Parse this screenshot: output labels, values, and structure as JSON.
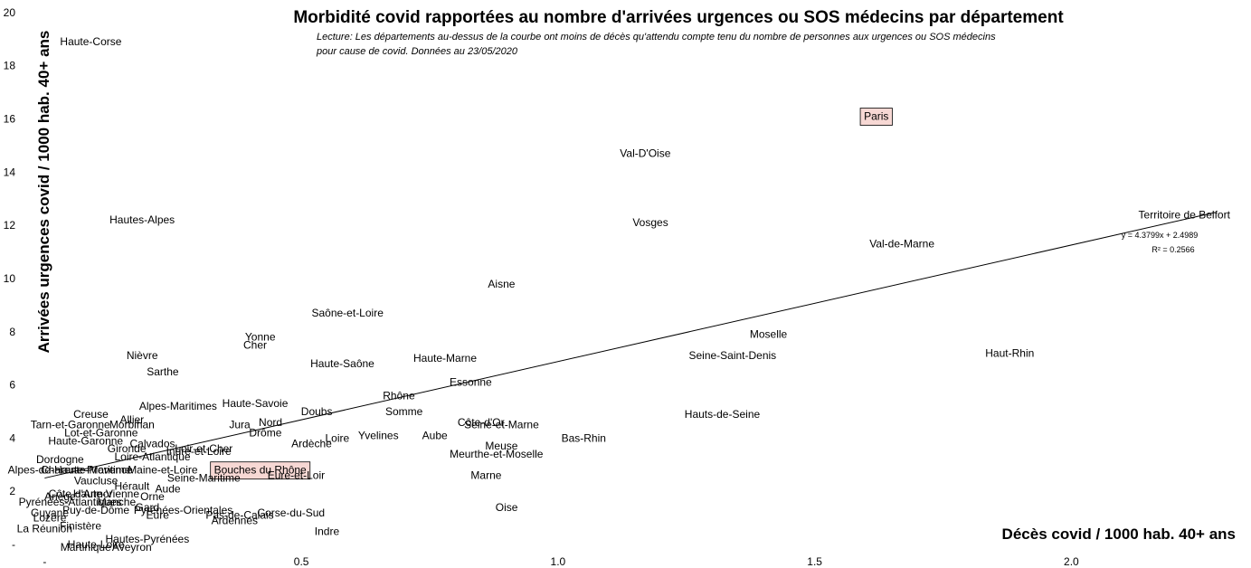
{
  "chart_data": {
    "type": "scatter",
    "title": "Morbidité covid rapportées au nombre d'arrivées urgences ou SOS médecins par département",
    "subtitle_lines": [
      "Lecture: Les départements au-dessus de la courbe ont moins de décès qu'attendu compte tenu du nombre de personnes  aux urgences ou SOS médecins",
      "pour cause de covid. Données au 23/05/2020"
    ],
    "xlabel": "Décès covid / 1000 hab. 40+ ans",
    "ylabel": "Arrivées urgences covid / 1000 hab.  40+ ans",
    "xlim": [
      -0.02,
      2.32
    ],
    "ylim": [
      -0.1,
      20.3
    ],
    "x_ticks": [
      {
        "v": 0,
        "label": "-"
      },
      {
        "v": 0.5,
        "label": "0.5"
      },
      {
        "v": 1.0,
        "label": "1.0"
      },
      {
        "v": 1.5,
        "label": "1.5"
      },
      {
        "v": 2.0,
        "label": "2.0"
      }
    ],
    "y_ticks": [
      {
        "v": 0,
        "label": "-"
      },
      {
        "v": 2,
        "label": "2"
      },
      {
        "v": 4,
        "label": "4"
      },
      {
        "v": 6,
        "label": "6"
      },
      {
        "v": 8,
        "label": "8"
      },
      {
        "v": 10,
        "label": "10"
      },
      {
        "v": 12,
        "label": "12"
      },
      {
        "v": 14,
        "label": "14"
      },
      {
        "v": 16,
        "label": "16"
      },
      {
        "v": 18,
        "label": "18"
      },
      {
        "v": 20,
        "label": "20"
      }
    ],
    "trendline": {
      "slope": 4.3799,
      "intercept": 2.4989,
      "x_range": [
        0.0,
        2.28
      ],
      "equation_label": "y = 4.3799x + 2.4989",
      "r2_label": "R² = 0.2566"
    },
    "points": [
      {
        "name": "Haute-Corse",
        "x": 0.09,
        "y": 18.9
      },
      {
        "name": "Paris",
        "x": 1.62,
        "y": 16.1,
        "highlight": true
      },
      {
        "name": "Val-D'Oise",
        "x": 1.17,
        "y": 14.7
      },
      {
        "name": "Territoire de Belfort",
        "x": 2.22,
        "y": 12.4
      },
      {
        "name": "Hautes-Alpes",
        "x": 0.19,
        "y": 12.2
      },
      {
        "name": "Vosges",
        "x": 1.18,
        "y": 12.1
      },
      {
        "name": "Val-de-Marne",
        "x": 1.67,
        "y": 11.3
      },
      {
        "name": "Aisne",
        "x": 0.89,
        "y": 9.8
      },
      {
        "name": "Saône-et-Loire",
        "x": 0.59,
        "y": 8.7
      },
      {
        "name": "Moselle",
        "x": 1.41,
        "y": 7.9
      },
      {
        "name": "Yonne",
        "x": 0.42,
        "y": 7.8
      },
      {
        "name": "Cher",
        "x": 0.41,
        "y": 7.5
      },
      {
        "name": "Haut-Rhin",
        "x": 1.88,
        "y": 7.2
      },
      {
        "name": "Nièvre",
        "x": 0.19,
        "y": 7.1
      },
      {
        "name": "Seine-Saint-Denis",
        "x": 1.34,
        "y": 7.1
      },
      {
        "name": "Haute-Marne",
        "x": 0.78,
        "y": 7.0
      },
      {
        "name": "Haute-Saône",
        "x": 0.58,
        "y": 6.8
      },
      {
        "name": "Sarthe",
        "x": 0.23,
        "y": 6.5
      },
      {
        "name": "Essonne",
        "x": 0.83,
        "y": 6.1
      },
      {
        "name": "Rhône",
        "x": 0.69,
        "y": 5.6
      },
      {
        "name": "Haute-Savoie",
        "x": 0.41,
        "y": 5.3
      },
      {
        "name": "Alpes-Maritimes",
        "x": 0.26,
        "y": 5.2
      },
      {
        "name": "Doubs",
        "x": 0.53,
        "y": 5.0
      },
      {
        "name": "Somme",
        "x": 0.7,
        "y": 5.0
      },
      {
        "name": "Hauts-de-Seine",
        "x": 1.32,
        "y": 4.9
      },
      {
        "name": "Creuse",
        "x": 0.09,
        "y": 4.9
      },
      {
        "name": "Allier",
        "x": 0.17,
        "y": 4.7
      },
      {
        "name": "Côte-d'Or",
        "x": 0.85,
        "y": 4.6
      },
      {
        "name": "Nord",
        "x": 0.44,
        "y": 4.6
      },
      {
        "name": "Jura",
        "x": 0.38,
        "y": 4.5
      },
      {
        "name": "Tarn-et-Garonne",
        "x": 0.05,
        "y": 4.5
      },
      {
        "name": "Morbihan",
        "x": 0.17,
        "y": 4.5
      },
      {
        "name": "Seine-et-Marne",
        "x": 0.89,
        "y": 4.5
      },
      {
        "name": "Drôme",
        "x": 0.43,
        "y": 4.2
      },
      {
        "name": "Lot-et-Garonne",
        "x": 0.11,
        "y": 4.2
      },
      {
        "name": "Yvelines",
        "x": 0.65,
        "y": 4.1
      },
      {
        "name": "Aube",
        "x": 0.76,
        "y": 4.1
      },
      {
        "name": "Loire",
        "x": 0.57,
        "y": 4.0
      },
      {
        "name": "Bas-Rhin",
        "x": 1.05,
        "y": 4.0
      },
      {
        "name": "Haute-Garonne",
        "x": 0.08,
        "y": 3.9
      },
      {
        "name": "Ardèche",
        "x": 0.52,
        "y": 3.8
      },
      {
        "name": "Calvados",
        "x": 0.21,
        "y": 3.8
      },
      {
        "name": "Meuse",
        "x": 0.89,
        "y": 3.7
      },
      {
        "name": "Loir-et-Cher",
        "x": 0.31,
        "y": 3.6
      },
      {
        "name": "Gironde",
        "x": 0.16,
        "y": 3.6
      },
      {
        "name": "Indre-et-Loire",
        "x": 0.3,
        "y": 3.5
      },
      {
        "name": "Meurthe-et-Moselle",
        "x": 0.88,
        "y": 3.4
      },
      {
        "name": "Loire-Atlantique",
        "x": 0.21,
        "y": 3.3
      },
      {
        "name": "Dordogne",
        "x": 0.03,
        "y": 3.2
      },
      {
        "name": "Charente-Maritime",
        "x": 0.08,
        "y": 2.8
      },
      {
        "name": "Bouches  du Rhône",
        "x": 0.42,
        "y": 2.8,
        "highlight": true
      },
      {
        "name": "Maine-et-Loire",
        "x": 0.23,
        "y": 2.8
      },
      {
        "name": "Alpes-de-Haute-Provence",
        "x": 0.05,
        "y": 2.8
      },
      {
        "name": "Eure-et-Loir",
        "x": 0.49,
        "y": 2.6
      },
      {
        "name": "Marne",
        "x": 0.86,
        "y": 2.6
      },
      {
        "name": "Seine-Maritime",
        "x": 0.31,
        "y": 2.5
      },
      {
        "name": "Vaucluse",
        "x": 0.1,
        "y": 2.4
      },
      {
        "name": "Hérault",
        "x": 0.17,
        "y": 2.2
      },
      {
        "name": "Aude",
        "x": 0.24,
        "y": 2.1
      },
      {
        "name": "Côte-d'Armor",
        "x": 0.07,
        "y": 1.9
      },
      {
        "name": "Haute-Vienne",
        "x": 0.12,
        "y": 1.9
      },
      {
        "name": "Orne",
        "x": 0.21,
        "y": 1.8
      },
      {
        "name": "Ariège",
        "x": 0.03,
        "y": 1.8
      },
      {
        "name": "Pyrénées-Atlantiques",
        "x": 0.05,
        "y": 1.6
      },
      {
        "name": "Manche",
        "x": 0.14,
        "y": 1.6
      },
      {
        "name": "Gard",
        "x": 0.2,
        "y": 1.4
      },
      {
        "name": "Puy-de-Dôme",
        "x": 0.1,
        "y": 1.3
      },
      {
        "name": "Pyrénées-Orientales",
        "x": 0.27,
        "y": 1.3
      },
      {
        "name": "Oise",
        "x": 0.9,
        "y": 1.4
      },
      {
        "name": "Guyane",
        "x": 0.01,
        "y": 1.2
      },
      {
        "name": "Corse-du-Sud",
        "x": 0.48,
        "y": 1.2
      },
      {
        "name": "Pas-de-Calais",
        "x": 0.38,
        "y": 1.1
      },
      {
        "name": "Eure",
        "x": 0.22,
        "y": 1.1
      },
      {
        "name": "Lozère",
        "x": 0.01,
        "y": 1.0
      },
      {
        "name": "Ardennes",
        "x": 0.37,
        "y": 0.9
      },
      {
        "name": "Finistère",
        "x": 0.07,
        "y": 0.7
      },
      {
        "name": "La Réunion",
        "x": 0.0,
        "y": 0.6
      },
      {
        "name": "Indre",
        "x": 0.55,
        "y": 0.5
      },
      {
        "name": "Hautes-Pyrénées",
        "x": 0.2,
        "y": 0.2
      },
      {
        "name": "Haute-Loire",
        "x": 0.1,
        "y": 0.0
      },
      {
        "name": "Martinique",
        "x": 0.08,
        "y": -0.1
      },
      {
        "name": "Aveyron",
        "x": 0.17,
        "y": -0.1
      }
    ]
  }
}
